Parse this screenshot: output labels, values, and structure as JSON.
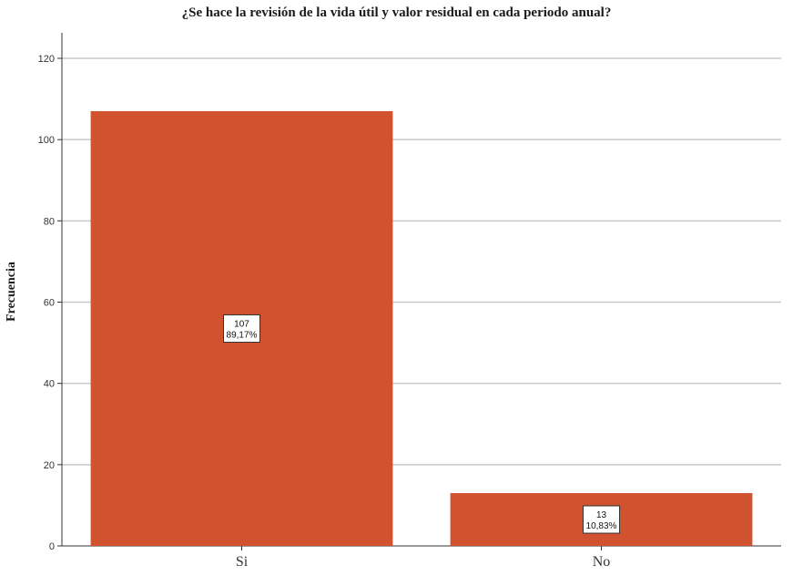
{
  "chart_data": {
    "type": "bar",
    "title": "¿Se hace la revisión de la vida útil y valor residual en cada periodo anual?",
    "xlabel": "",
    "ylabel": "Frecuencia",
    "categories": [
      "Si",
      "No"
    ],
    "values": [
      107,
      13
    ],
    "data_labels": [
      {
        "count": "107",
        "percent": "89,17%"
      },
      {
        "count": "13",
        "percent": "10,83%"
      }
    ],
    "ylim": [
      0,
      120
    ],
    "yticks": [
      0,
      20,
      40,
      60,
      80,
      100,
      120
    ],
    "grid": true,
    "bar_color": "#d0522f"
  }
}
